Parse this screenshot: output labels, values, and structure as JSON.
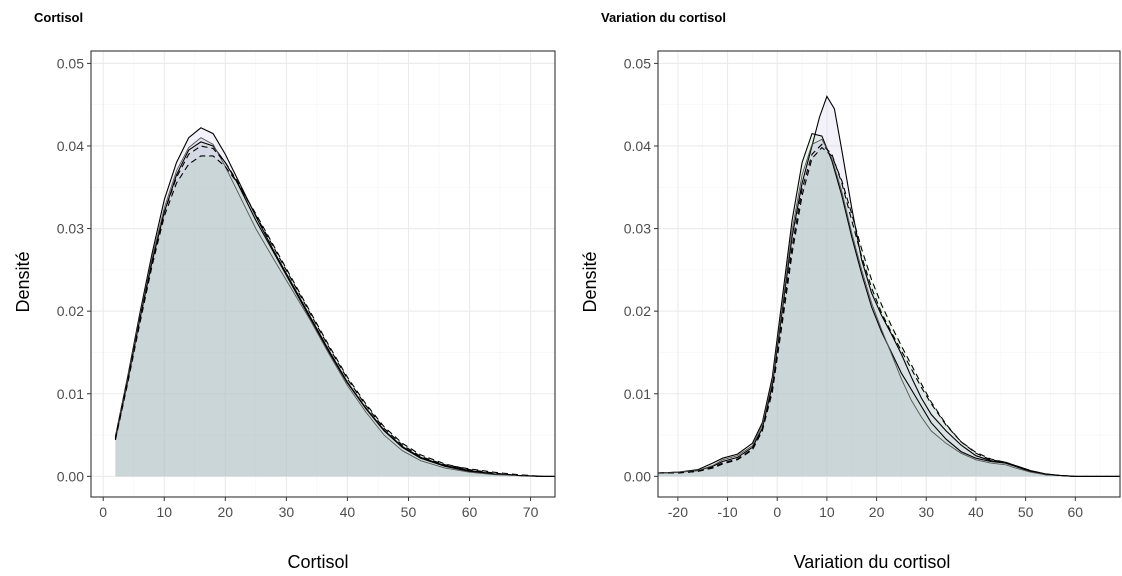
{
  "chart_data": [
    {
      "type": "area",
      "title": "Cortisol",
      "xlabel": "Cortisol",
      "ylabel": "Densité",
      "xlim": [
        -2,
        74
      ],
      "ylim": [
        -0.0025,
        0.0515
      ],
      "xticks": [
        "0",
        "10",
        "20",
        "30",
        "40",
        "50",
        "60",
        "70"
      ],
      "yticks": [
        "0.00",
        "0.01",
        "0.02",
        "0.03",
        "0.04",
        "0.05"
      ],
      "grid": true,
      "legend": "none",
      "colors": {
        "fill_a": "#9dd39d",
        "fill_b": "#c9c6e6",
        "fill_c": "#b9b4d6"
      },
      "series": [
        {
          "style": "solid",
          "fill": "#9dd39d",
          "x": [
            2,
            4,
            6,
            8,
            10,
            12,
            14,
            16,
            18,
            20,
            22,
            25,
            28,
            31,
            34,
            37,
            40,
            43,
            46,
            49,
            52,
            56,
            60,
            64,
            68,
            72,
            74
          ],
          "y": [
            0.0045,
            0.0115,
            0.019,
            0.026,
            0.032,
            0.0365,
            0.0395,
            0.0405,
            0.04,
            0.038,
            0.0355,
            0.031,
            0.027,
            0.023,
            0.019,
            0.015,
            0.0113,
            0.0082,
            0.0055,
            0.0035,
            0.0022,
            0.0012,
            0.0006,
            0.0003,
            0.0001,
            0.0,
            0.0
          ]
        },
        {
          "style": "solid",
          "fill": "#c9c6e6",
          "x": [
            2,
            4,
            6,
            8,
            10,
            12,
            14,
            16,
            18,
            20,
            22,
            25,
            28,
            31,
            34,
            37,
            40,
            43,
            46,
            49,
            52,
            56,
            60,
            64,
            68,
            72,
            74
          ],
          "y": [
            0.0048,
            0.012,
            0.0197,
            0.027,
            0.0335,
            0.038,
            0.041,
            0.0422,
            0.0415,
            0.039,
            0.036,
            0.0315,
            0.0272,
            0.0232,
            0.0192,
            0.0152,
            0.0114,
            0.0083,
            0.0056,
            0.0036,
            0.0023,
            0.0013,
            0.0007,
            0.0003,
            0.0001,
            0.0,
            0.0
          ]
        },
        {
          "style": "solid",
          "fill": "#b9b4d6",
          "x": [
            2,
            4,
            6,
            8,
            10,
            12,
            14,
            16,
            18,
            20,
            22,
            25,
            28,
            31,
            34,
            37,
            40,
            43,
            46,
            49,
            52,
            56,
            60,
            64,
            68,
            72,
            74
          ],
          "y": [
            0.0046,
            0.0118,
            0.0193,
            0.0265,
            0.0325,
            0.037,
            0.0398,
            0.041,
            0.0402,
            0.0375,
            0.0345,
            0.03,
            0.0262,
            0.0225,
            0.0188,
            0.0148,
            0.011,
            0.0078,
            0.005,
            0.0031,
            0.0019,
            0.001,
            0.0005,
            0.0002,
            0.0001,
            0.0,
            0.0
          ]
        },
        {
          "style": "dashed",
          "fill": "#9dd39d",
          "x": [
            2,
            4,
            6,
            8,
            10,
            12,
            14,
            16,
            18,
            20,
            22,
            25,
            28,
            31,
            34,
            37,
            40,
            43,
            46,
            49,
            52,
            56,
            60,
            64,
            68,
            72,
            74
          ],
          "y": [
            0.0044,
            0.0112,
            0.0185,
            0.0255,
            0.0315,
            0.0355,
            0.0378,
            0.0388,
            0.0388,
            0.0375,
            0.0355,
            0.0318,
            0.0278,
            0.0238,
            0.0198,
            0.0158,
            0.012,
            0.0088,
            0.006,
            0.004,
            0.0026,
            0.0015,
            0.0008,
            0.0004,
            0.0001,
            0.0,
            0.0
          ]
        },
        {
          "style": "dashed",
          "fill": "#c9c6e6",
          "x": [
            2,
            4,
            6,
            8,
            10,
            12,
            14,
            16,
            18,
            20,
            22,
            25,
            28,
            31,
            34,
            37,
            40,
            43,
            46,
            49,
            52,
            56,
            60,
            64,
            68,
            72,
            74
          ],
          "y": [
            0.0046,
            0.0116,
            0.019,
            0.026,
            0.032,
            0.0362,
            0.039,
            0.04,
            0.0397,
            0.038,
            0.0357,
            0.0316,
            0.0276,
            0.0236,
            0.0196,
            0.0156,
            0.0118,
            0.0086,
            0.0058,
            0.0038,
            0.0024,
            0.0014,
            0.0009,
            0.0005,
            0.0002,
            0.0,
            0.0
          ]
        }
      ]
    },
    {
      "type": "area",
      "title": "Variation du cortisol",
      "xlabel": "Variation du cortisol",
      "ylabel": "Densité",
      "xlim": [
        -24,
        69
      ],
      "ylim": [
        -0.0025,
        0.0515
      ],
      "xticks": [
        "-20",
        "-10",
        "0",
        "10",
        "20",
        "30",
        "40",
        "50",
        "60"
      ],
      "yticks": [
        "0.00",
        "0.01",
        "0.02",
        "0.03",
        "0.04",
        "0.05"
      ],
      "grid": true,
      "legend": "none",
      "colors": {
        "fill_a": "#9dd39d",
        "fill_b": "#c9c6e6",
        "fill_c": "#b9b4d6"
      },
      "series": [
        {
          "style": "solid",
          "fill": "#9dd39d",
          "x": [
            -24,
            -20,
            -16,
            -13,
            -11,
            -8,
            -5,
            -3,
            -1,
            1,
            3,
            5,
            7,
            9,
            11,
            13,
            15,
            17,
            19,
            21,
            23,
            25,
            27,
            29,
            31,
            34,
            37,
            40,
            43,
            46,
            48,
            51,
            54,
            57,
            60,
            64,
            69
          ],
          "y": [
            0.0004,
            0.0005,
            0.0008,
            0.0016,
            0.0022,
            0.0027,
            0.004,
            0.0065,
            0.012,
            0.0215,
            0.031,
            0.038,
            0.0415,
            0.0412,
            0.0382,
            0.034,
            0.029,
            0.0245,
            0.0205,
            0.0175,
            0.015,
            0.0125,
            0.0105,
            0.0085,
            0.0065,
            0.0045,
            0.003,
            0.0022,
            0.0018,
            0.0016,
            0.0012,
            0.0006,
            0.0002,
            0.0001,
            0.0,
            0.0,
            0.0
          ]
        },
        {
          "style": "solid",
          "fill": "#c9c6e6",
          "x": [
            -24,
            -20,
            -16,
            -13,
            -11,
            -8,
            -5,
            -3,
            -1,
            1,
            3,
            5,
            7,
            8.5,
            10,
            11.5,
            13,
            15,
            17,
            19,
            21,
            23,
            25,
            27,
            29,
            31,
            34,
            37,
            40,
            43,
            46,
            48,
            51,
            54,
            57,
            60,
            64,
            69
          ],
          "y": [
            0.0004,
            0.0005,
            0.0007,
            0.0012,
            0.0018,
            0.0023,
            0.0035,
            0.0058,
            0.011,
            0.02,
            0.029,
            0.0355,
            0.04,
            0.0435,
            0.046,
            0.0445,
            0.0395,
            0.0325,
            0.0262,
            0.0222,
            0.0195,
            0.0172,
            0.0148,
            0.012,
            0.0095,
            0.0075,
            0.0055,
            0.0038,
            0.0025,
            0.0019,
            0.0016,
            0.0012,
            0.0006,
            0.0003,
            0.0001,
            0.0,
            0.0,
            0.0
          ]
        },
        {
          "style": "solid",
          "fill": "#b9b4d6",
          "x": [
            -24,
            -20,
            -16,
            -13,
            -11,
            -8,
            -5,
            -3,
            -1,
            1,
            3,
            5,
            7,
            9,
            11,
            13,
            15,
            17,
            19,
            21,
            23,
            25,
            27,
            29,
            31,
            34,
            37,
            40,
            43,
            46,
            48,
            51,
            54,
            57,
            60,
            64,
            69
          ],
          "y": [
            0.0004,
            0.0005,
            0.0007,
            0.0013,
            0.002,
            0.0025,
            0.0037,
            0.0062,
            0.0115,
            0.0205,
            0.0298,
            0.0365,
            0.0402,
            0.0408,
            0.0385,
            0.0345,
            0.0295,
            0.025,
            0.021,
            0.0178,
            0.0148,
            0.0118,
            0.0092,
            0.0072,
            0.0055,
            0.004,
            0.0028,
            0.002,
            0.0016,
            0.0014,
            0.001,
            0.0005,
            0.0002,
            0.0001,
            0.0,
            0.0,
            0.0
          ]
        },
        {
          "style": "dashed",
          "fill": "#9dd39d",
          "x": [
            -24,
            -20,
            -16,
            -13,
            -11,
            -8,
            -5,
            -3,
            -1,
            1,
            3,
            5,
            7,
            9,
            11,
            13,
            15,
            17,
            19,
            21,
            23,
            25,
            27,
            29,
            31,
            34,
            37,
            40,
            43,
            46,
            48,
            51,
            54,
            57,
            60,
            64,
            69
          ],
          "y": [
            0.0004,
            0.0004,
            0.0006,
            0.001,
            0.0015,
            0.002,
            0.0032,
            0.0055,
            0.0102,
            0.0185,
            0.027,
            0.034,
            0.0385,
            0.0398,
            0.0388,
            0.0358,
            0.0318,
            0.0275,
            0.0238,
            0.0208,
            0.0182,
            0.0158,
            0.0135,
            0.0112,
            0.009,
            0.0063,
            0.0042,
            0.0028,
            0.002,
            0.0017,
            0.0013,
            0.0007,
            0.0003,
            0.0001,
            0.0,
            0.0,
            0.0
          ]
        },
        {
          "style": "dashed",
          "fill": "#c9c6e6",
          "x": [
            -24,
            -20,
            -16,
            -13,
            -11,
            -8,
            -5,
            -3,
            -1,
            1,
            3,
            5,
            7,
            9,
            11,
            13,
            15,
            17,
            19,
            21,
            23,
            25,
            27,
            29,
            31,
            34,
            37,
            40,
            43,
            46,
            48,
            51,
            54,
            57,
            60,
            64,
            69
          ],
          "y": [
            0.0004,
            0.0004,
            0.0006,
            0.0011,
            0.0016,
            0.0021,
            0.0033,
            0.0057,
            0.0106,
            0.019,
            0.0278,
            0.0348,
            0.039,
            0.0402,
            0.039,
            0.0355,
            0.031,
            0.0266,
            0.0228,
            0.0198,
            0.0174,
            0.0152,
            0.013,
            0.0108,
            0.0088,
            0.0062,
            0.0042,
            0.0029,
            0.0021,
            0.0017,
            0.0013,
            0.0007,
            0.0003,
            0.0001,
            0.0,
            0.0,
            0.0
          ]
        }
      ]
    }
  ]
}
